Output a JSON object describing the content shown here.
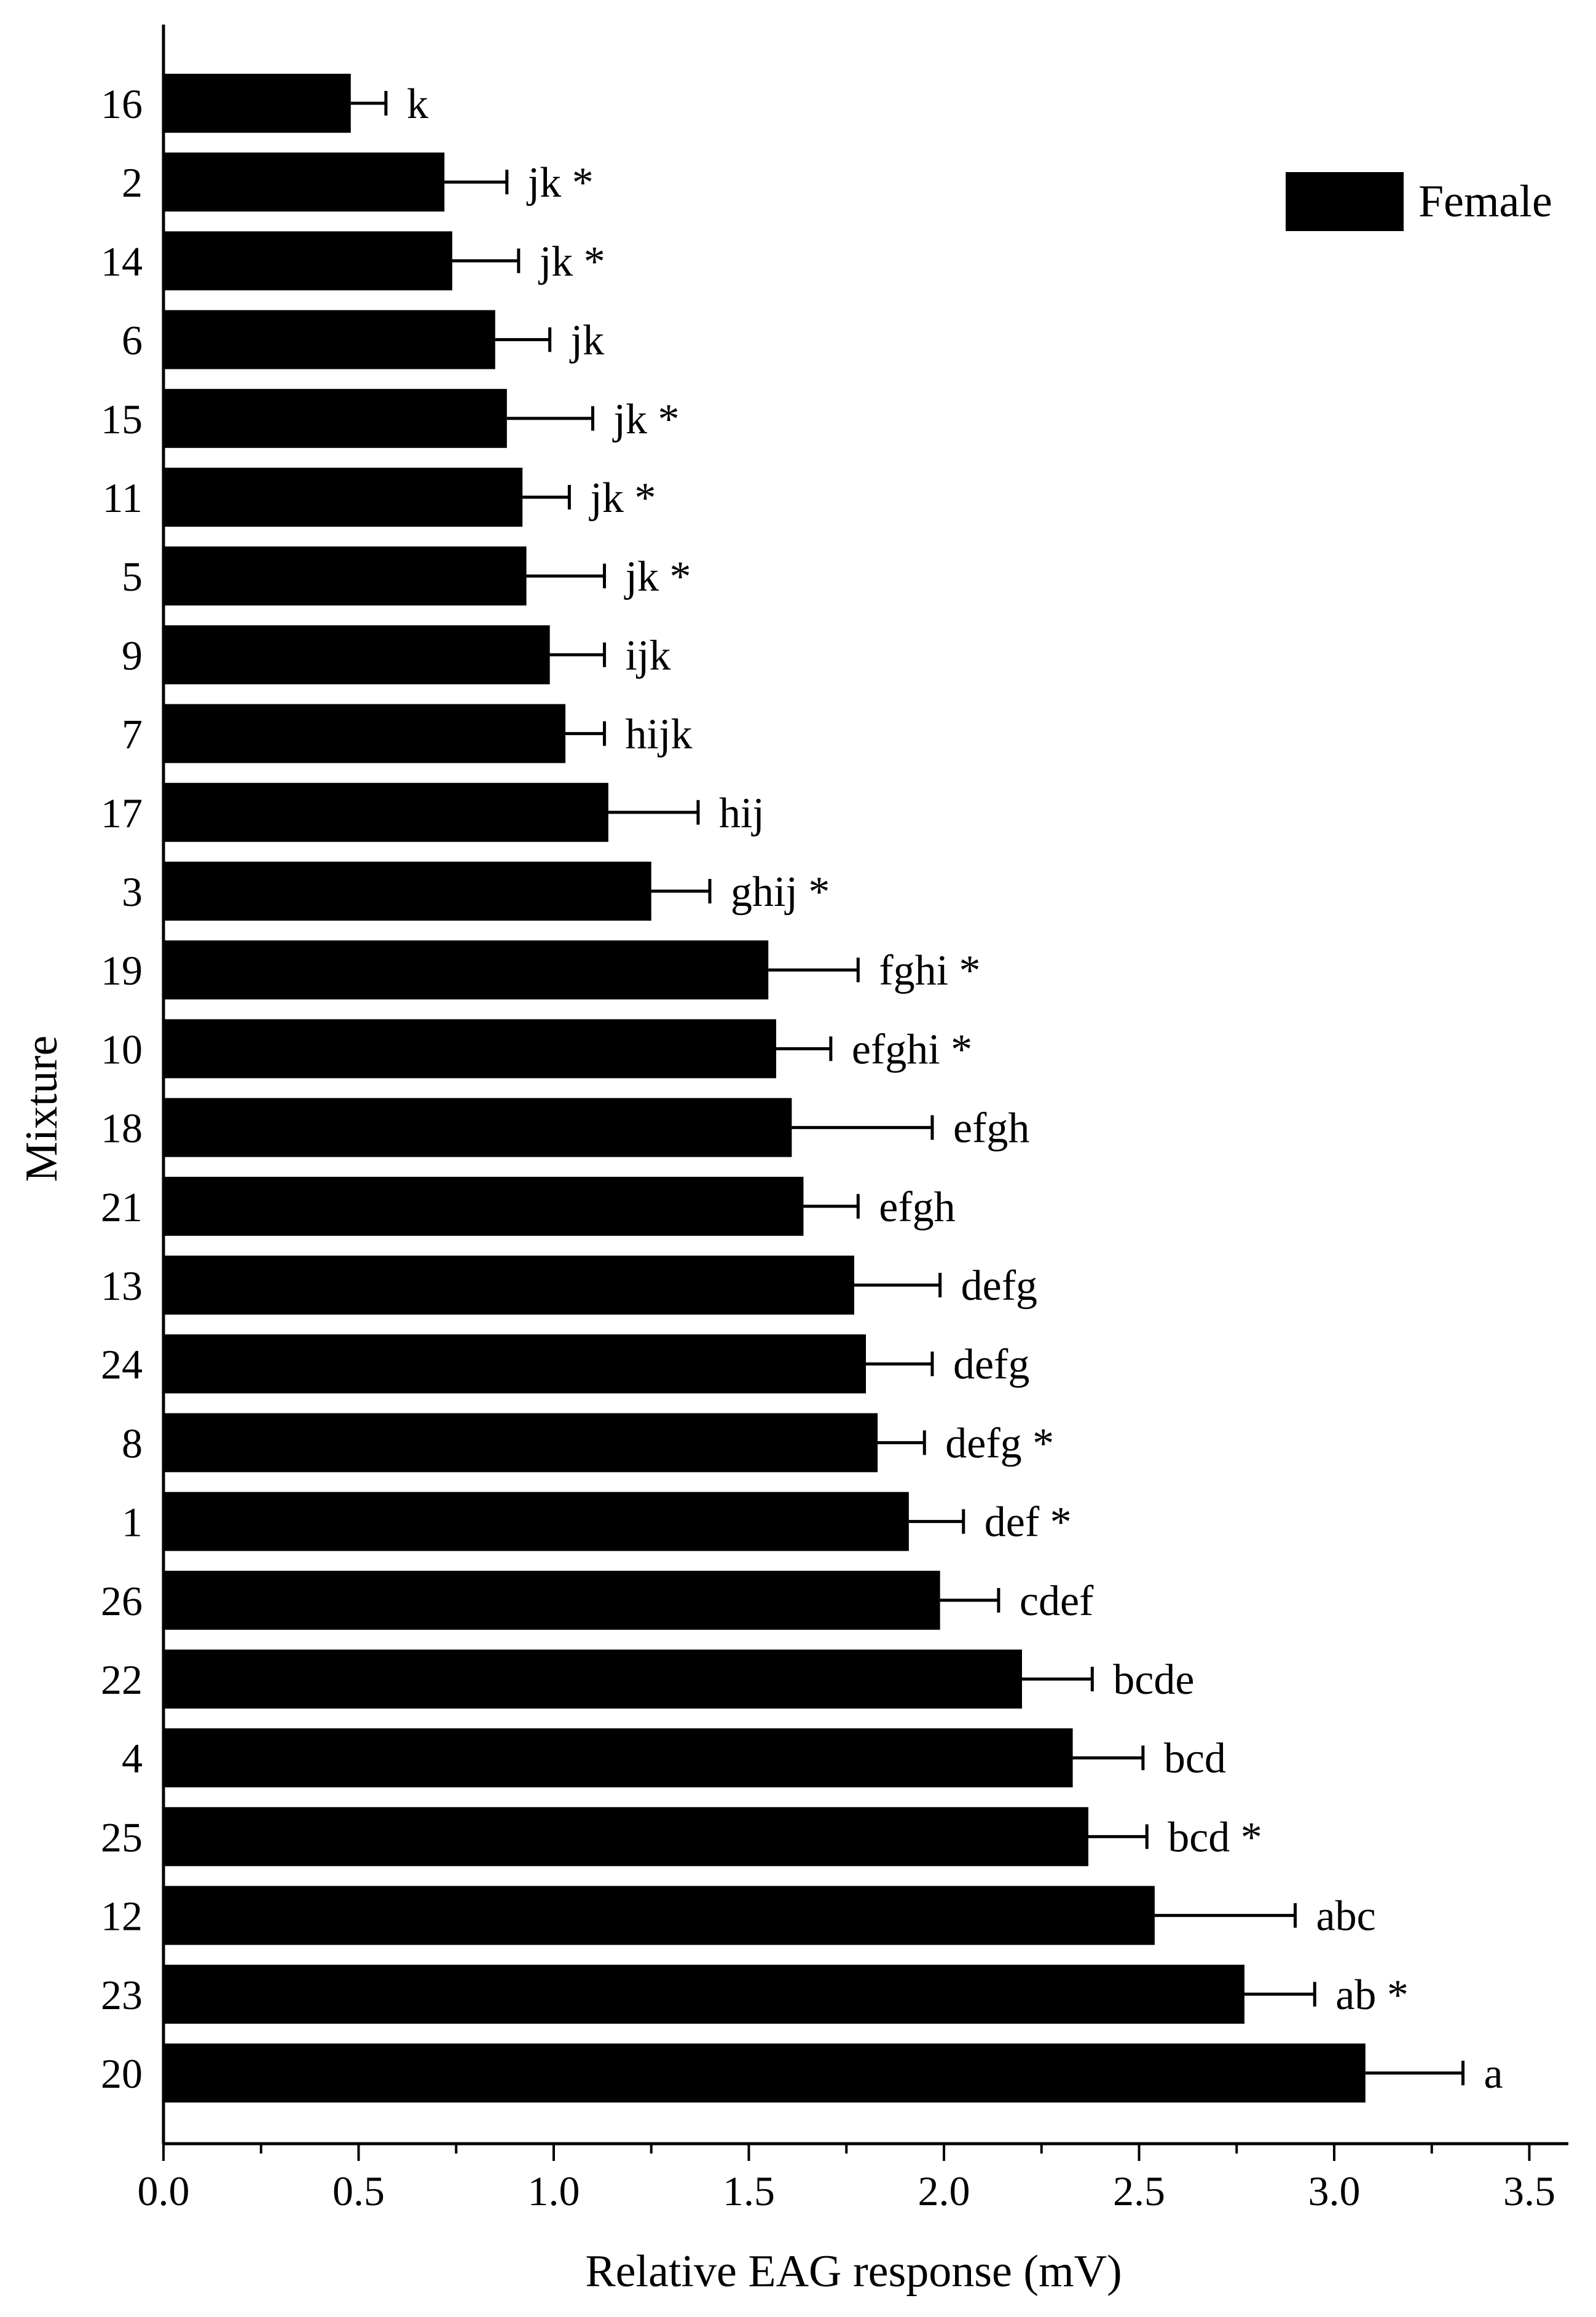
{
  "chart_data": {
    "type": "bar",
    "orientation": "horizontal",
    "title": "",
    "xlabel": "Relative EAG response (mV)",
    "ylabel": "Mixture",
    "xlim": [
      0,
      3.6
    ],
    "xticks": [
      "0.0",
      "0.5",
      "1.0",
      "1.5",
      "2.0",
      "2.5",
      "3.0",
      "3.5"
    ],
    "grid": false,
    "legend": {
      "position": "top-right",
      "entries": [
        "Female"
      ]
    },
    "bar_color": "#000000",
    "categories": [
      "16",
      "2",
      "14",
      "6",
      "15",
      "11",
      "5",
      "9",
      "7",
      "17",
      "3",
      "19",
      "10",
      "18",
      "21",
      "13",
      "24",
      "8",
      "1",
      "26",
      "22",
      "4",
      "25",
      "12",
      "23",
      "20"
    ],
    "series": [
      {
        "name": "Female",
        "values": [
          0.48,
          0.72,
          0.74,
          0.85,
          0.88,
          0.92,
          0.93,
          0.99,
          1.03,
          1.14,
          1.25,
          1.55,
          1.57,
          1.61,
          1.64,
          1.77,
          1.8,
          1.83,
          1.91,
          1.99,
          2.2,
          2.33,
          2.37,
          2.54,
          2.77,
          3.08
        ],
        "errors": [
          0.09,
          0.16,
          0.17,
          0.14,
          0.22,
          0.12,
          0.2,
          0.14,
          0.1,
          0.23,
          0.15,
          0.23,
          0.14,
          0.36,
          0.14,
          0.22,
          0.17,
          0.12,
          0.14,
          0.15,
          0.18,
          0.18,
          0.15,
          0.36,
          0.18,
          0.25
        ],
        "significance": [
          "k",
          "jk *",
          "jk *",
          "jk",
          "jk *",
          "jk *",
          "jk *",
          "ijk",
          "hijk",
          "hij",
          "ghij *",
          "fghi *",
          "efghi *",
          "efgh",
          "efgh",
          "defg",
          "defg",
          "defg *",
          "def *",
          "cdef",
          "bcde",
          "bcd",
          "bcd *",
          "abc",
          "ab *",
          "a"
        ]
      }
    ]
  }
}
